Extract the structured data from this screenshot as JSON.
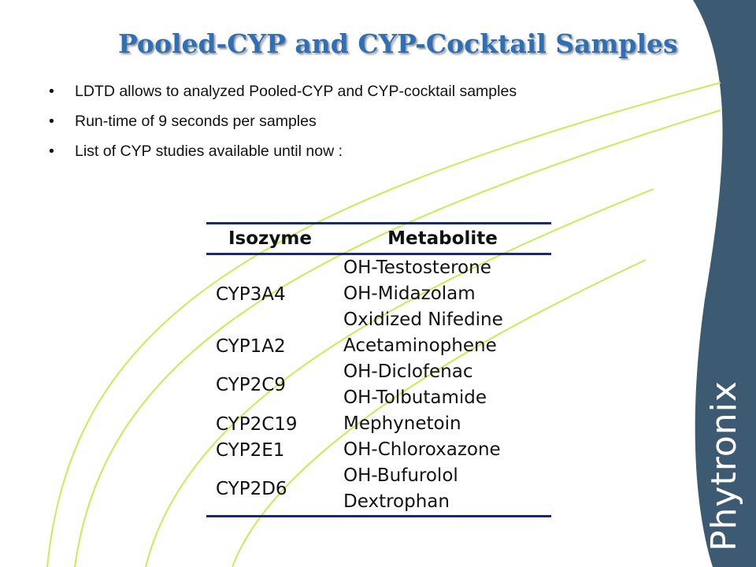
{
  "slide": {
    "title": "Pooled-CYP and CYP-Cocktail Samples",
    "bullets": [
      "LDTD allows to analyzed Pooled-CYP and CYP-cocktail samples",
      "Run-time of 9 seconds per samples",
      "List of CYP studies available until now :"
    ],
    "table": {
      "headers": [
        "Isozyme",
        "Metabolite"
      ],
      "rows": [
        {
          "isozyme": "CYP3A4",
          "metabolites": [
            "OH-Testosterone",
            "OH-Midazolam",
            "Oxidized Nifedine"
          ]
        },
        {
          "isozyme": "CYP1A2",
          "metabolites": [
            "Acetaminophene"
          ]
        },
        {
          "isozyme": "CYP2C9",
          "metabolites": [
            "OH-Diclofenac",
            "OH-Tolbutamide"
          ]
        },
        {
          "isozyme": "CYP2C19",
          "metabolites": [
            "Mephynetoin"
          ]
        },
        {
          "isozyme": "CYP2E1",
          "metabolites": [
            "OH-Chloroxazone"
          ]
        },
        {
          "isozyme": "CYP2D6",
          "metabolites": [
            "OH-Bufurolol",
            "Dextrophan"
          ]
        }
      ]
    },
    "logo_text": "Phytronix"
  },
  "colors": {
    "title": "#2f6fb5",
    "side_panel": "#3d5a73",
    "swoosh": "#c3ef55",
    "table_rule": "#1a2a6a"
  }
}
